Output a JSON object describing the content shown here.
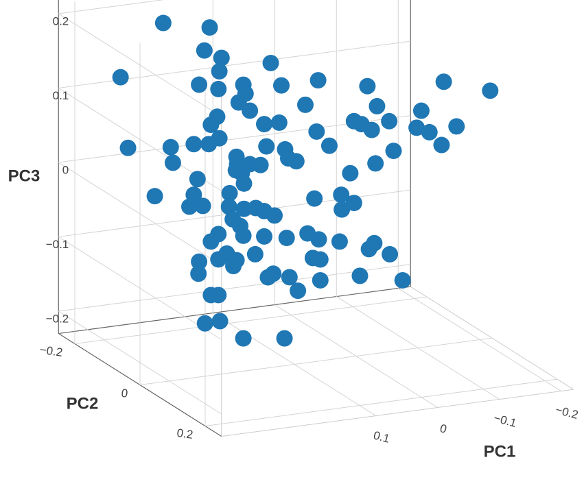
{
  "chart_data": {
    "type": "scatter3d",
    "x_label": "PC1",
    "y_label": "PC2",
    "z_label": "PC3",
    "color": "#1f77b4",
    "xlim": [
      -0.22,
      0.35
    ],
    "ylim": [
      -0.25,
      0.25
    ],
    "zlim": [
      -0.23,
      0.23
    ],
    "xticks": [
      {
        "value": -0.2,
        "label": "−0.2"
      },
      {
        "value": -0.1,
        "label": "−0.1"
      },
      0,
      0.1
    ],
    "yticks": [
      {
        "value": -0.2,
        "label": "−0.2"
      },
      0,
      0.2
    ],
    "zticks": [
      {
        "value": -0.2,
        "label": "−0.2"
      },
      {
        "value": -0.1,
        "label": "−0.1"
      },
      0,
      0.1,
      0.2
    ],
    "grid": true,
    "x": [
      0.258,
      0.196,
      0.203,
      0.18,
      0.114,
      0.183,
      0.315,
      0.21,
      0.184,
      0.151,
      0.1,
      0.051,
      0.148,
      0.157,
      0.142,
      0.068,
      -0.015,
      -0.117,
      -0.179,
      -0.028,
      -0.087,
      -0.044,
      0.003,
      -0.007,
      -0.021,
      -0.081,
      -0.098,
      -0.134,
      -0.114,
      -0.05,
      0.186,
      0.194,
      0.123,
      0.103,
      0.053,
      0.036,
      0.183,
      0.197,
      0.217,
      0.248,
      0.305,
      0.245,
      0.16,
      0.12,
      0.095,
      0.091,
      0.08,
      0.159,
      0.142,
      0.128,
      0.153,
      0.161,
      -0.026,
      0.008,
      0.212,
      0.15,
      0.269,
      0.217,
      0.223,
      0.205,
      0.169,
      0.17,
      0.02,
      0.056,
      0.019,
      0.003,
      0.15,
      0.134,
      0.123,
      0.109,
      0.165,
      0.155,
      0.151,
      0.184,
      0.194,
      0.123,
      0.093,
      0.065,
      0.05,
      0.022,
      -0.024,
      -0.017,
      -0.045,
      0.173,
      0.184,
      0.16,
      0.135,
      0.058,
      0.048,
      0.21,
      0.211,
      0.164,
      0.111,
      0.118,
      0.089,
      0.078,
      0.048,
      -0.005,
      -0.062,
      0.194,
      0.184,
      0.202,
      0.182,
      0.151,
      0.096
    ],
    "y": [
      -0.103,
      -0.078,
      -0.081,
      -0.072,
      -0.046,
      -0.073,
      -0.126,
      -0.084,
      -0.074,
      -0.06,
      -0.04,
      -0.02,
      -0.059,
      -0.063,
      -0.057,
      -0.027,
      0.006,
      0.047,
      0.072,
      0.011,
      0.035,
      0.018,
      -0.001,
      0.003,
      0.008,
      0.032,
      0.039,
      0.054,
      0.046,
      0.02,
      -0.074,
      -0.078,
      -0.049,
      -0.041,
      -0.021,
      -0.014,
      -0.073,
      -0.079,
      -0.087,
      -0.099,
      -0.122,
      -0.098,
      -0.064,
      -0.048,
      -0.038,
      -0.036,
      -0.032,
      -0.064,
      -0.057,
      -0.051,
      -0.061,
      -0.064,
      0.01,
      -0.003,
      -0.085,
      -0.06,
      -0.108,
      -0.087,
      -0.089,
      -0.082,
      -0.068,
      -0.068,
      -0.008,
      -0.022,
      -0.008,
      -0.001,
      -0.06,
      -0.054,
      -0.049,
      -0.044,
      -0.066,
      -0.062,
      -0.06,
      -0.074,
      -0.078,
      -0.049,
      -0.037,
      -0.026,
      -0.02,
      -0.009,
      0.01,
      0.007,
      0.018,
      -0.069,
      -0.074,
      -0.064,
      -0.054,
      -0.023,
      -0.019,
      -0.084,
      -0.084,
      -0.066,
      -0.044,
      -0.047,
      -0.036,
      -0.031,
      -0.019,
      0.002,
      0.025,
      -0.078,
      -0.074,
      -0.081,
      -0.073,
      -0.06,
      -0.038
    ],
    "z": [
      0.218,
      0.212,
      0.181,
      0.171,
      0.164,
      0.153,
      0.145,
      0.135,
      0.129,
      0.135,
      0.134,
      0.141,
      0.123,
      0.111,
      0.1,
      0.108,
      0.133,
      0.139,
      0.127,
      0.106,
      0.1,
      0.086,
      0.086,
      0.082,
      0.074,
      0.077,
      0.071,
      0.079,
      0.054,
      0.046,
      0.092,
      0.081,
      0.082,
      0.084,
      0.072,
      0.053,
      0.063,
      0.055,
      0.055,
      0.051,
      0.05,
      0.03,
      0.038,
      0.052,
      0.048,
      0.036,
      0.032,
      0.028,
      0.028,
      0.027,
      0.016,
      0.02,
      0.029,
      0.016,
      0.008,
      0.002,
      -0.015,
      -0.013,
      -0.029,
      -0.028,
      -0.011,
      -0.029,
      -0.013,
      -0.018,
      -0.033,
      -0.024,
      -0.032,
      -0.031,
      -0.035,
      -0.041,
      -0.046,
      -0.055,
      -0.068,
      -0.066,
      -0.076,
      -0.069,
      -0.071,
      -0.065,
      -0.073,
      -0.076,
      -0.078,
      -0.086,
      -0.093,
      -0.092,
      -0.1,
      -0.101,
      -0.093,
      -0.098,
      -0.1,
      -0.103,
      -0.119,
      -0.109,
      -0.119,
      -0.124,
      -0.124,
      -0.142,
      -0.128,
      -0.122,
      -0.128,
      -0.148,
      -0.148,
      -0.186,
      -0.183,
      -0.206,
      -0.206
    ]
  }
}
